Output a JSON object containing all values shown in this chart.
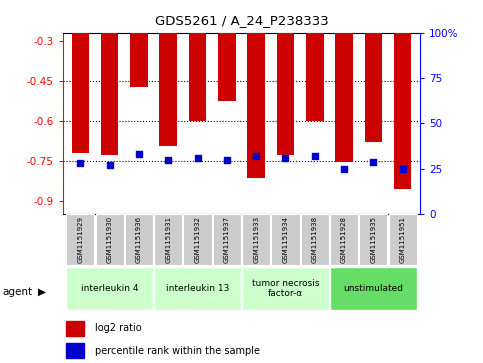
{
  "title": "GDS5261 / A_24_P238333",
  "samples": [
    "GSM1151929",
    "GSM1151930",
    "GSM1151936",
    "GSM1151931",
    "GSM1151932",
    "GSM1151937",
    "GSM1151933",
    "GSM1151934",
    "GSM1151938",
    "GSM1151928",
    "GSM1151935",
    "GSM1151951"
  ],
  "log2_ratios": [
    -0.72,
    -0.73,
    -0.475,
    -0.695,
    -0.6,
    -0.525,
    -0.815,
    -0.73,
    -0.6,
    -0.755,
    -0.68,
    -0.855
  ],
  "percentile_ranks": [
    28,
    27,
    33,
    30,
    31,
    30,
    32,
    31,
    32,
    25,
    29,
    25
  ],
  "bar_color": "#cc0000",
  "square_color": "#0000cc",
  "agent_groups": [
    {
      "label": "interleukin 4",
      "start": 0,
      "end": 3,
      "color": "#ccffcc"
    },
    {
      "label": "interleukin 13",
      "start": 3,
      "end": 6,
      "color": "#ccffcc"
    },
    {
      "label": "tumor necrosis\nfactor-α",
      "start": 6,
      "end": 9,
      "color": "#ccffcc"
    },
    {
      "label": "unstimulated",
      "start": 9,
      "end": 12,
      "color": "#66dd66"
    }
  ],
  "ylim_left": [
    -0.95,
    -0.27
  ],
  "ylim_right": [
    0,
    100
  ],
  "yticks_left": [
    -0.9,
    -0.75,
    -0.6,
    -0.45,
    -0.3
  ],
  "yticks_right": [
    0,
    25,
    50,
    75,
    100
  ],
  "grid_values": [
    -0.75,
    -0.6,
    -0.45
  ],
  "legend_log2": "log2 ratio",
  "legend_pct": "percentile rank within the sample"
}
